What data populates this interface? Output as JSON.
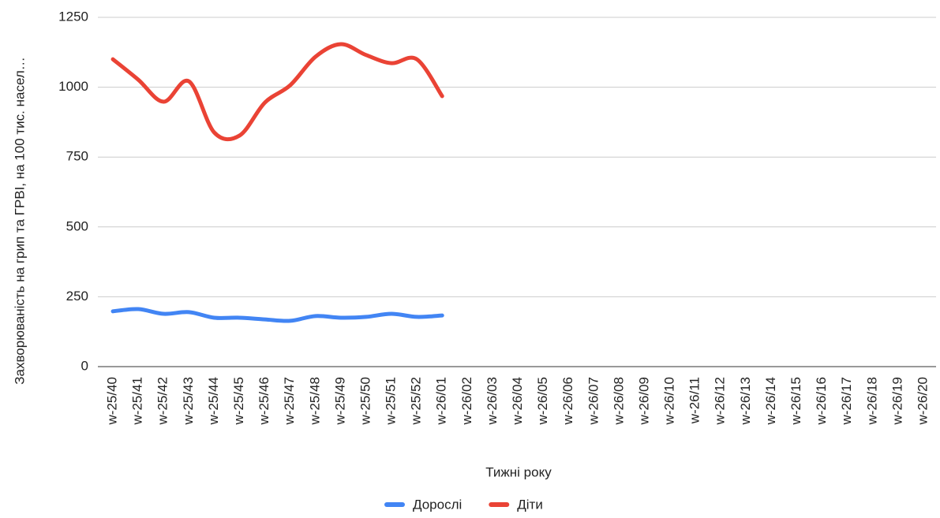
{
  "chart_data": {
    "type": "line",
    "y_label": "Захворюваність на грип та ГРВІ, на 100 тис. насел…",
    "x_label": "Тижні року",
    "categories": [
      "w-25/40",
      "w-25/41",
      "w-25/42",
      "w-25/43",
      "w-25/44",
      "w-25/45",
      "w-25/46",
      "w-25/47",
      "w-25/48",
      "w-25/49",
      "w-25/50",
      "w-25/51",
      "w-25/52",
      "w-26/01",
      "w-26/02",
      "w-26/03",
      "w-26/04",
      "w-26/05",
      "w-26/06",
      "w-26/07",
      "w-26/08",
      "w-26/09",
      "w-26/10",
      "w-26/11",
      "w-26/12",
      "w-26/13",
      "w-26/14",
      "w-26/15",
      "w-26/16",
      "w-26/17",
      "w-26/18",
      "w-26/19",
      "w-26/20"
    ],
    "series": [
      {
        "name": "Дорослі",
        "color": "#4285f4",
        "values": [
          198,
          206,
          189,
          195,
          175,
          175,
          169,
          164,
          181,
          175,
          178,
          189,
          178,
          183,
          null,
          null,
          null,
          null,
          null,
          null,
          null,
          null,
          null,
          null,
          null,
          null,
          null,
          null,
          null,
          null,
          null,
          null,
          null
        ]
      },
      {
        "name": "Діти",
        "color": "#ea4335",
        "values": [
          1100,
          1027,
          948,
          1021,
          838,
          827,
          945,
          1007,
          1109,
          1154,
          1115,
          1086,
          1100,
          968,
          null,
          null,
          null,
          null,
          null,
          null,
          null,
          null,
          null,
          null,
          null,
          null,
          null,
          null,
          null,
          null,
          null,
          null,
          null
        ]
      }
    ],
    "ylim": [
      0,
      1250
    ],
    "yticks": [
      0,
      250,
      500,
      750,
      1000,
      1250
    ],
    "grid": true,
    "legend": "bottom"
  }
}
